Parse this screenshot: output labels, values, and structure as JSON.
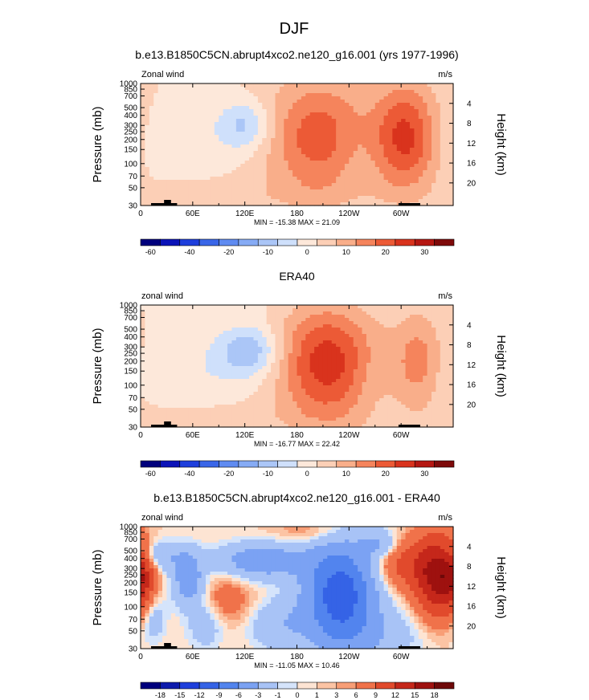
{
  "figure": {
    "title": "DJF"
  },
  "chart_data": [
    {
      "type": "heatmap",
      "title": "b.e13.B1850C5CN.abrupt4xco2.ne120_g16.001 (yrs 1977-1996)",
      "left_string": "Zonal wind",
      "right_string": "m/s",
      "xlabel": "",
      "ylabel": "Pressure (mb)",
      "ylabel_right": "Height (km)",
      "x_ticks": [
        "0",
        "60E",
        "120E",
        "180",
        "120W",
        "60W"
      ],
      "pressure_ticks": [
        "30",
        "50",
        "70",
        "100",
        "150",
        "200",
        "250",
        "300",
        "400",
        "500",
        "700",
        "850",
        "1000"
      ],
      "height_ticks": [
        "4",
        "8",
        "12",
        "16",
        "20"
      ],
      "stats": "MIN = -15.38  MAX = 21.09",
      "colorbar_labels": [
        "-60",
        "-40",
        "-20",
        "-10",
        "0",
        "10",
        "20",
        "30"
      ],
      "blobs": [
        {
          "lon": 205,
          "p": 140,
          "dlon": 42,
          "dp": 1.2,
          "amp": 18
        },
        {
          "lon": 305,
          "p": 140,
          "dlon": 26,
          "dp": 1.1,
          "amp": 21
        },
        {
          "lon": 120,
          "p": 100,
          "dlon": 22,
          "dp": 0.5,
          "amp": -12
        },
        {
          "lon": 55,
          "p": 170,
          "dlon": 40,
          "dp": 0.7,
          "amp": -3
        },
        {
          "lon": 250,
          "p": 200,
          "dlon": 20,
          "dp": 0.6,
          "amp": -2
        },
        {
          "lon": 130,
          "p": 700,
          "dlon": 90,
          "dp": 0.3,
          "amp": 2.5
        },
        {
          "lon": 30,
          "p": 900,
          "dlon": 20,
          "dp": 0.2,
          "amp": 2
        }
      ]
    },
    {
      "type": "heatmap",
      "title": "ERA40",
      "left_string": "zonal wind",
      "right_string": "m/s",
      "xlabel": "",
      "ylabel": "Pressure (mb)",
      "ylabel_right": "Height (km)",
      "x_ticks": [
        "0",
        "60E",
        "120E",
        "180",
        "120W",
        "60W"
      ],
      "pressure_ticks": [
        "30",
        "50",
        "70",
        "100",
        "150",
        "200",
        "250",
        "300",
        "400",
        "500",
        "700",
        "850",
        "1000"
      ],
      "height_ticks": [
        "4",
        "8",
        "12",
        "16",
        "20"
      ],
      "stats": "MIN = -16.77  MAX = 22.42",
      "colorbar_labels": [
        "-60",
        "-40",
        "-20",
        "-10",
        "0",
        "10",
        "20",
        "30"
      ],
      "blobs": [
        {
          "lon": 215,
          "p": 160,
          "dlon": 40,
          "dp": 1.2,
          "amp": 23
        },
        {
          "lon": 320,
          "p": 150,
          "dlon": 20,
          "dp": 1.0,
          "amp": 12
        },
        {
          "lon": 125,
          "p": 110,
          "dlon": 25,
          "dp": 0.5,
          "amp": -14
        },
        {
          "lon": 70,
          "p": 200,
          "dlon": 55,
          "dp": 0.7,
          "amp": -4
        },
        {
          "lon": 260,
          "p": 250,
          "dlon": 15,
          "dp": 0.6,
          "amp": -2
        },
        {
          "lon": 180,
          "p": 30,
          "dlon": 120,
          "dp": 0.3,
          "amp": -1.5
        },
        {
          "lon": 100,
          "p": 750,
          "dlon": 90,
          "dp": 0.35,
          "amp": 2
        }
      ]
    },
    {
      "type": "heatmap",
      "title": "b.e13.B1850C5CN.abrupt4xco2.ne120_g16.001 - ERA40",
      "left_string": "zonal wind",
      "right_string": "m/s",
      "xlabel": "",
      "ylabel": "Pressure (mb)",
      "ylabel_right": "Height (km)",
      "x_ticks": [
        "0",
        "60E",
        "120E",
        "180",
        "120W",
        "60W"
      ],
      "pressure_ticks": [
        "30",
        "50",
        "70",
        "100",
        "150",
        "200",
        "250",
        "300",
        "400",
        "500",
        "700",
        "850",
        "1000"
      ],
      "height_ticks": [
        "4",
        "8",
        "12",
        "16",
        "20"
      ],
      "stats": "MIN = -11.05  MAX = 10.46",
      "colorbar_labels": [
        "-18",
        "-15",
        "-12",
        "-9",
        "-6",
        "-3",
        "-1",
        "0",
        "1",
        "3",
        "6",
        "9",
        "12",
        "15",
        "18"
      ],
      "blobs": [
        {
          "lon": 230,
          "p": 210,
          "dlon": 28,
          "dp": 1.0,
          "amp": -11
        },
        {
          "lon": 340,
          "p": 120,
          "dlon": 16,
          "dp": 0.8,
          "amp": 9
        },
        {
          "lon": 305,
          "p": 90,
          "dlon": 25,
          "dp": 0.5,
          "amp": 4
        },
        {
          "lon": 0,
          "p": 130,
          "dlon": 12,
          "dp": 0.6,
          "amp": 6
        },
        {
          "lon": 55,
          "p": 140,
          "dlon": 12,
          "dp": 0.5,
          "amp": -5
        },
        {
          "lon": 140,
          "p": 80,
          "dlon": 35,
          "dp": 0.35,
          "amp": -5
        },
        {
          "lon": 20,
          "p": 70,
          "dlon": 25,
          "dp": 0.3,
          "amp": -3
        },
        {
          "lon": 275,
          "p": 50,
          "dlon": 15,
          "dp": 0.3,
          "amp": -3
        },
        {
          "lon": 200,
          "p": 35,
          "dlon": 30,
          "dp": 0.25,
          "amp": 1.5
        },
        {
          "lon": 160,
          "p": 500,
          "dlon": 25,
          "dp": 0.5,
          "amp": -2.5
        },
        {
          "lon": 100,
          "p": 250,
          "dlon": 20,
          "dp": 0.5,
          "amp": 2
        },
        {
          "lon": 75,
          "p": 500,
          "dlon": 15,
          "dp": 0.5,
          "amp": -2
        },
        {
          "lon": 270,
          "p": 700,
          "dlon": 40,
          "dp": 0.5,
          "amp": -2
        },
        {
          "lon": 15,
          "p": 400,
          "dlon": 10,
          "dp": 0.5,
          "amp": -2
        }
      ]
    }
  ]
}
